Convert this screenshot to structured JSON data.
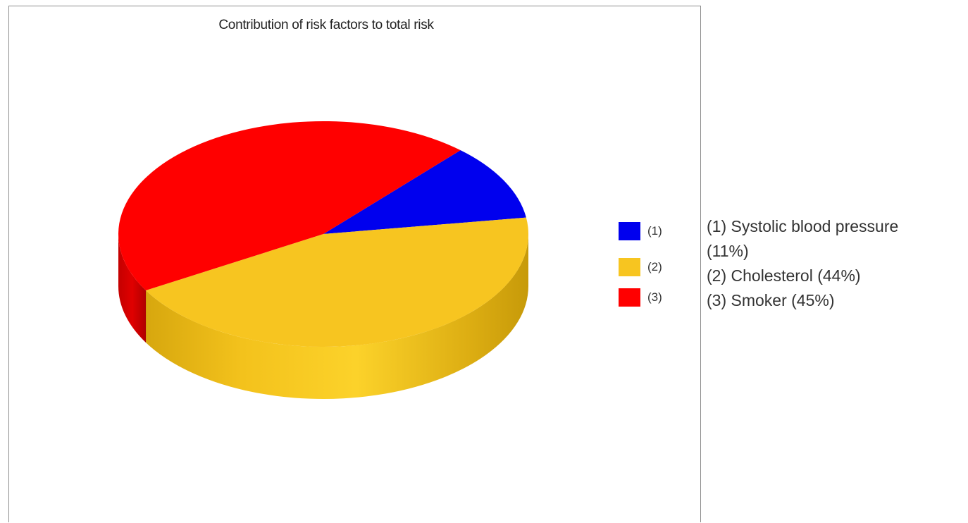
{
  "chart_data": {
    "type": "pie",
    "title": "Contribution of risk factors to total risk",
    "three_d": true,
    "slices": [
      {
        "key": "(1)",
        "label": "Systolic blood pressure",
        "value": 11,
        "color": "#0000ee"
      },
      {
        "key": "(2)",
        "label": "Cholesterol",
        "value": 44,
        "color": "#f7c520"
      },
      {
        "key": "(3)",
        "label": "Smoker",
        "value": 45,
        "color": "#ff0000"
      }
    ],
    "legend": {
      "placement": "right",
      "entries": [
        "(1)",
        "(2)",
        "(3)"
      ]
    }
  },
  "description": {
    "lines": [
      "(1) Systolic blood pressure",
      "(11%)",
      "(2) Cholesterol (44%)",
      "(3) Smoker (45%)"
    ]
  }
}
